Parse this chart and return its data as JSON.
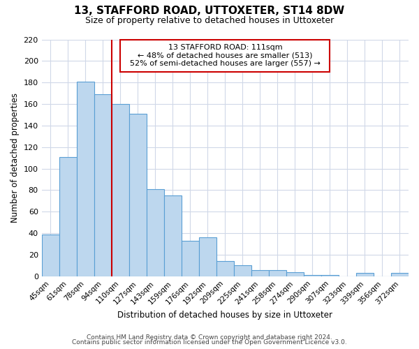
{
  "title": "13, STAFFORD ROAD, UTTOXETER, ST14 8DW",
  "subtitle": "Size of property relative to detached houses in Uttoxeter",
  "xlabel": "Distribution of detached houses by size in Uttoxeter",
  "ylabel": "Number of detached properties",
  "bar_labels": [
    "45sqm",
    "61sqm",
    "78sqm",
    "94sqm",
    "110sqm",
    "127sqm",
    "143sqm",
    "159sqm",
    "176sqm",
    "192sqm",
    "209sqm",
    "225sqm",
    "241sqm",
    "258sqm",
    "274sqm",
    "290sqm",
    "307sqm",
    "323sqm",
    "339sqm",
    "356sqm",
    "372sqm"
  ],
  "bar_values": [
    39,
    111,
    181,
    169,
    160,
    151,
    81,
    75,
    33,
    36,
    14,
    10,
    6,
    6,
    4,
    1,
    1,
    0,
    3,
    0,
    3
  ],
  "bar_color": "#bdd7ee",
  "bar_edge_color": "#5a9fd4",
  "vline_x_index": 3,
  "vline_color": "#cc0000",
  "annotation_title": "13 STAFFORD ROAD: 111sqm",
  "annotation_line1": "← 48% of detached houses are smaller (513)",
  "annotation_line2": "52% of semi-detached houses are larger (557) →",
  "annotation_box_color": "#ffffff",
  "annotation_box_edge": "#cc0000",
  "ylim": [
    0,
    220
  ],
  "yticks": [
    0,
    20,
    40,
    60,
    80,
    100,
    120,
    140,
    160,
    180,
    200,
    220
  ],
  "footer1": "Contains HM Land Registry data © Crown copyright and database right 2024.",
  "footer2": "Contains public sector information licensed under the Open Government Licence v3.0.",
  "bg_color": "#ffffff",
  "grid_color": "#d0d8e8"
}
